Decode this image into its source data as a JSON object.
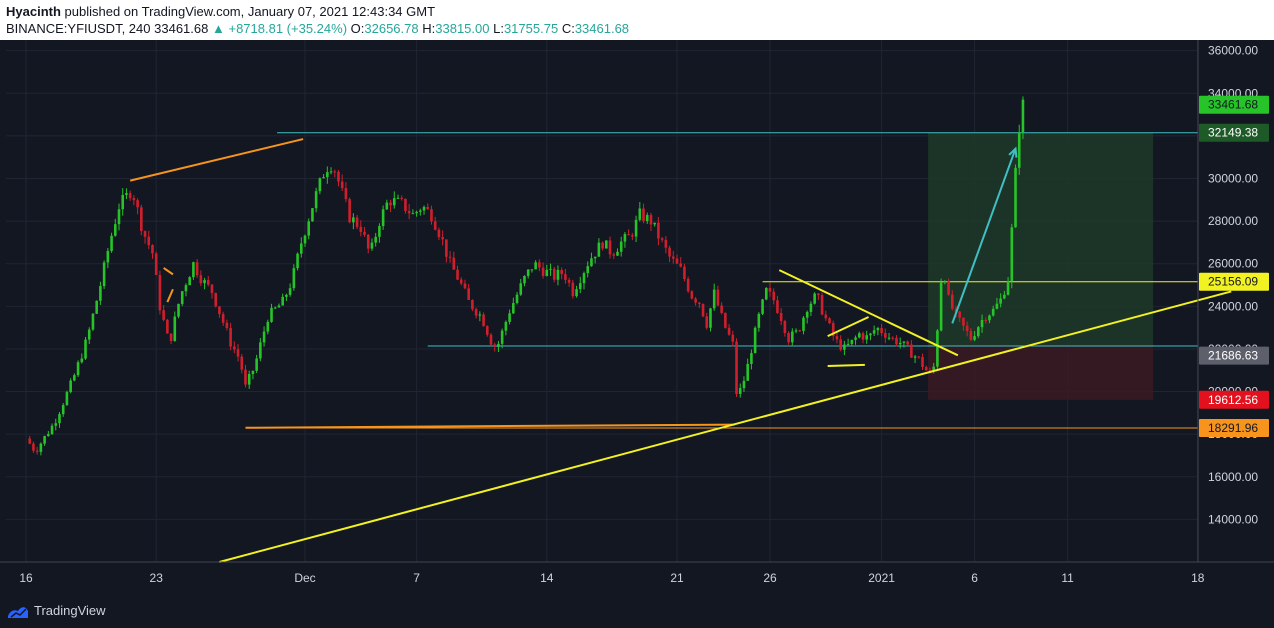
{
  "header": {
    "author": "Hyacinth",
    "published_text": "published on TradingView.com, January 07, 2021 12:43:34 GMT",
    "symbol": "BINANCE:YFIUSDT, 240",
    "last": "33461.68",
    "change": "+8718.81 (+35.24%)",
    "o_label": "O:",
    "o_value": "32656.78",
    "h_label": "H:",
    "h_value": "33815.00",
    "l_label": "L:",
    "l_value": "31755.75",
    "c_label": "C:",
    "c_value": "33461.68"
  },
  "footer": {
    "brand": "TradingView",
    "logo_icon": "tradingview-logo-icon"
  },
  "colors": {
    "background": "#131722",
    "up": "#26c428",
    "down": "#d01f2c",
    "grid": "#1f2533",
    "yellow": "#f2f223",
    "orange": "#f7941d",
    "teal": "#3fbfc3"
  },
  "chart_data": {
    "type": "candlestick",
    "symbol": "YFIUSDT",
    "interval": "240",
    "ylim": [
      12000,
      36500
    ],
    "y_ticks": [
      14000,
      16000,
      18000,
      20000,
      22000,
      24000,
      26000,
      28000,
      30000,
      32000,
      34000,
      36000
    ],
    "y_tick_labels": [
      "14000.00",
      "16000.00",
      "18000.00",
      "20000.00",
      "22000.00",
      "24000.00",
      "26000.00",
      "28000.00",
      "30000.00",
      "32000.00",
      "34000.00",
      "36000.00"
    ],
    "x_ticks": [
      {
        "label": "16",
        "day": 0
      },
      {
        "label": "23",
        "day": 7
      },
      {
        "label": "Dec",
        "day": 15
      },
      {
        "label": "7",
        "day": 21
      },
      {
        "label": "14",
        "day": 28
      },
      {
        "label": "21",
        "day": 35
      },
      {
        "label": "26",
        "day": 40
      },
      {
        "label": "2021",
        "day": 46
      },
      {
        "label": "6",
        "day": 51
      },
      {
        "label": "11",
        "day": 56
      },
      {
        "label": "18",
        "day": 63
      }
    ],
    "path_points": [
      [
        0,
        17800
      ],
      [
        0.5,
        17200
      ],
      [
        1.5,
        18500
      ],
      [
        2.5,
        20500
      ],
      [
        3.3,
        22500
      ],
      [
        4,
        25000
      ],
      [
        4.5,
        27000
      ],
      [
        5,
        28700
      ],
      [
        5.7,
        29500
      ],
      [
        6.3,
        27500
      ],
      [
        6.8,
        26500
      ],
      [
        7.2,
        24000
      ],
      [
        7.7,
        22200
      ],
      [
        8.3,
        24500
      ],
      [
        9,
        26000
      ],
      [
        9.5,
        25200
      ],
      [
        10,
        24700
      ],
      [
        10.5,
        23500
      ],
      [
        11,
        22300
      ],
      [
        11.5,
        21500
      ],
      [
        11.8,
        20200
      ],
      [
        12.3,
        21200
      ],
      [
        13,
        23500
      ],
      [
        13.8,
        24200
      ],
      [
        14.3,
        25200
      ],
      [
        14.8,
        27000
      ],
      [
        15.5,
        29000
      ],
      [
        16.1,
        30500
      ],
      [
        16.5,
        30700
      ],
      [
        17,
        29300
      ],
      [
        17.4,
        28200
      ],
      [
        18,
        27700
      ],
      [
        18.5,
        26400
      ],
      [
        19,
        28000
      ],
      [
        19.5,
        29000
      ],
      [
        20.2,
        28800
      ],
      [
        20.8,
        28300
      ],
      [
        21.3,
        28700
      ],
      [
        21.8,
        28300
      ],
      [
        22.3,
        27300
      ],
      [
        22.8,
        26000
      ],
      [
        23.3,
        25200
      ],
      [
        23.8,
        24200
      ],
      [
        24.5,
        23500
      ],
      [
        25,
        22400
      ],
      [
        25.3,
        22000
      ],
      [
        26,
        23800
      ],
      [
        26.8,
        25300
      ],
      [
        27.3,
        26000
      ],
      [
        27.8,
        25700
      ],
      [
        28.4,
        25400
      ],
      [
        28.9,
        25600
      ],
      [
        29.4,
        24700
      ],
      [
        30.3,
        26200
      ],
      [
        31,
        27000
      ],
      [
        31.5,
        26500
      ],
      [
        32,
        27000
      ],
      [
        32.5,
        27300
      ],
      [
        33,
        28300
      ],
      [
        33.6,
        28000
      ],
      [
        34,
        27300
      ],
      [
        34.6,
        26300
      ],
      [
        35.2,
        25700
      ],
      [
        35.8,
        24500
      ],
      [
        36.2,
        24200
      ],
      [
        36.6,
        23200
      ],
      [
        37,
        24600
      ],
      [
        37.5,
        23200
      ],
      [
        38,
        22200
      ],
      [
        38.1,
        20100
      ],
      [
        38.3,
        19800
      ],
      [
        38.7,
        20800
      ],
      [
        39,
        22000
      ],
      [
        39.4,
        23500
      ],
      [
        39.8,
        24700
      ],
      [
        40.2,
        24300
      ],
      [
        40.6,
        23500
      ],
      [
        41,
        22500
      ],
      [
        41.5,
        22800
      ],
      [
        42,
        24000
      ],
      [
        42.5,
        24500
      ],
      [
        43,
        23400
      ],
      [
        43.5,
        22400
      ],
      [
        44,
        22000
      ],
      [
        44.4,
        22300
      ],
      [
        44.8,
        22700
      ],
      [
        45.3,
        22500
      ],
      [
        45.7,
        23000
      ],
      [
        46.1,
        22800
      ],
      [
        46.5,
        22500
      ],
      [
        47,
        22300
      ],
      [
        47.5,
        21900
      ],
      [
        48,
        21500
      ],
      [
        48.4,
        21000
      ],
      [
        48.7,
        20800
      ],
      [
        48.9,
        21500
      ],
      [
        49.1,
        24500
      ],
      [
        49.3,
        26000
      ],
      [
        49.6,
        24300
      ],
      [
        50,
        23500
      ],
      [
        50.4,
        23000
      ],
      [
        50.8,
        22500
      ],
      [
        51.2,
        23100
      ],
      [
        51.6,
        23600
      ],
      [
        52,
        23800
      ],
      [
        52.4,
        24300
      ],
      [
        52.8,
        25300
      ],
      [
        53.1,
        28700
      ],
      [
        53.3,
        31800
      ],
      [
        53.5,
        33100
      ],
      [
        53.6,
        33461.68
      ]
    ],
    "price_labels": [
      {
        "text": "33461.68",
        "value": 33461.68,
        "bg": "#26c428",
        "fg": "#131722"
      },
      {
        "text": "32149.38",
        "value": 32149.38,
        "bg": "#1e5a28",
        "fg": "#ffffff"
      },
      {
        "text": "25156.09",
        "value": 25156.09,
        "bg": "#f2f223",
        "fg": "#131722"
      },
      {
        "text": "21686.63",
        "value": 21686.63,
        "bg": "#5d606b",
        "fg": "#ffffff"
      },
      {
        "text": "19612.56",
        "value": 19612.56,
        "bg": "#e3101e",
        "fg": "#ffffff"
      },
      {
        "text": "18291.96",
        "value": 18291.96,
        "bg": "#f7941d",
        "fg": "#131722"
      }
    ],
    "hlines": [
      {
        "value": 32149.38,
        "from_day": 13.5,
        "color": "#3fbfc3"
      },
      {
        "value": 25156.09,
        "from_day": 39.6,
        "color": "#f2f223"
      },
      {
        "value": 22137.84,
        "from_day": 21.6,
        "color": "#3fbfc3"
      },
      {
        "value": 18291.96,
        "from_day": 11.8,
        "color": "#f7941d"
      }
    ],
    "trendlines": [
      {
        "from": [
          5.6,
          29900
        ],
        "to": [
          14.9,
          31850
        ],
        "color": "#f7941d"
      },
      {
        "from": [
          11.8,
          18300
        ],
        "to": [
          38.1,
          18450
        ],
        "color": "#f7941d"
      },
      {
        "from": [
          7.4,
          25800
        ],
        "to": [
          7.9,
          25500
        ],
        "color": "#f7941d"
      },
      {
        "from": [
          7.6,
          24200
        ],
        "to": [
          7.9,
          24800
        ],
        "color": "#f7941d"
      },
      {
        "from": [
          10.4,
          12000
        ],
        "to": [
          64.8,
          24700
        ],
        "color": "#f2f223"
      },
      {
        "from": [
          40.5,
          25700
        ],
        "to": [
          50.1,
          21700
        ],
        "color": "#f2f223"
      },
      {
        "from": [
          43.1,
          22600
        ],
        "to": [
          45.3,
          23500
        ],
        "color": "#f2f223"
      },
      {
        "from": [
          43.1,
          21200
        ],
        "to": [
          45.1,
          21250
        ],
        "color": "#f2f223"
      },
      {
        "from": [
          49.8,
          23200
        ],
        "to": [
          53.2,
          31400
        ],
        "color": "#3fbfc3"
      }
    ],
    "position": {
      "entry": 22137.84,
      "target": 32149.38,
      "stop": 19612.56,
      "from_day": 48.5,
      "to_day": 60.6
    }
  }
}
